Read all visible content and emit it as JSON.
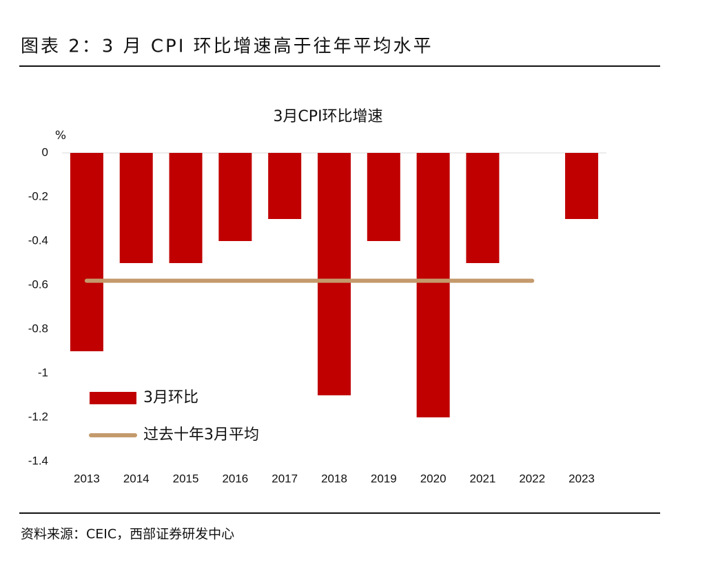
{
  "header": {
    "title": "图表 2：3 月 CPI 环比增速高于往年平均水平"
  },
  "chart_data": {
    "type": "bar",
    "title": "3月CPI环比增速",
    "y_label": "%",
    "categories": [
      "2013",
      "2014",
      "2015",
      "2016",
      "2017",
      "2018",
      "2019",
      "2020",
      "2021",
      "2022",
      "2023"
    ],
    "series": [
      {
        "name": "3月环比",
        "color": "#c00000",
        "values": [
          -0.9,
          -0.5,
          -0.5,
          -0.4,
          -0.3,
          -1.1,
          -0.4,
          -1.2,
          -0.5,
          0,
          -0.3
        ]
      },
      {
        "name": "过去十年3月平均",
        "type": "line",
        "color": "#c49a6c",
        "values": [
          -0.58,
          -0.58,
          -0.58,
          -0.58,
          -0.58,
          -0.58,
          -0.58,
          -0.58,
          -0.58,
          -0.58,
          null
        ]
      }
    ],
    "ylim": [
      -1.4,
      0
    ],
    "yticks": [
      0,
      -0.2,
      -0.4,
      -0.6,
      -0.8,
      -1,
      -1.2,
      -1.4
    ],
    "grid": false
  },
  "source": "资料来源：CEIC，西部证券研发中心"
}
